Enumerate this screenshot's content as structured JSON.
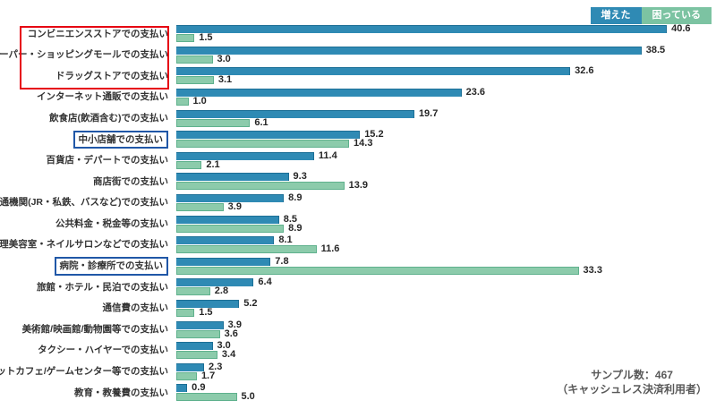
{
  "legend": {
    "items": [
      {
        "label": "増えた",
        "color": "#2F8AB4"
      },
      {
        "label": "困っている",
        "color": "#7CC3A2"
      }
    ]
  },
  "note": {
    "line1": "サンプル数：467",
    "line2": "（キャッシュレス決済利用者）"
  },
  "colors": {
    "bar_blue": "#2F8AB4",
    "bar_green": "#8CCBAB",
    "red_box": "#E60012",
    "blue_box": "#2057A7",
    "note_text": "#595959"
  },
  "chart_data": {
    "type": "bar",
    "orientation": "horizontal",
    "title": "",
    "grid": false,
    "legend_position": "top-right",
    "value_labels": true,
    "xlim": [
      0,
      44.6
    ],
    "categories": [
      "コンビニエンスストアでの支払い",
      "スーパー・ショッピングモールでの支払い",
      "ドラッグストアでの支払い",
      "インターネット通販での支払い",
      "飲食店(飲酒含む)での支払い",
      "中小店舗での支払い",
      "百貨店・デパートでの支払い",
      "商店街での支払い",
      "交通機関(JR・私鉄、バスなど)での支払い",
      "公共料金・税金等の支払い",
      "理美容室・ネイルサロンなどでの支払い",
      "病院・診療所での支払い",
      "旅館・ホテル・民泊での支払い",
      "通信費の支払い",
      "美術館/映画館/動物園等での支払い",
      "タクシー・ハイヤーでの支払い",
      "ネットカフェ/ゲームセンター等での支払い",
      "教育・教養費の支払い"
    ],
    "series": [
      {
        "name": "増えた",
        "color": "#2F8AB4",
        "values": [
          40.6,
          38.5,
          32.6,
          23.6,
          19.7,
          15.2,
          11.4,
          9.3,
          8.9,
          8.5,
          8.1,
          7.8,
          6.4,
          5.2,
          3.9,
          3.0,
          2.3,
          0.9
        ]
      },
      {
        "name": "困っている",
        "color": "#8CCBAB",
        "values": [
          1.5,
          3.0,
          3.1,
          1.0,
          6.1,
          14.3,
          2.1,
          13.9,
          3.9,
          8.9,
          11.6,
          33.3,
          2.8,
          1.5,
          3.6,
          3.4,
          1.7,
          5.0
        ]
      }
    ],
    "annotations": {
      "red_outline_category_indexes": [
        0,
        1,
        2
      ],
      "blue_outline_category_indexes": [
        5,
        11
      ]
    }
  }
}
